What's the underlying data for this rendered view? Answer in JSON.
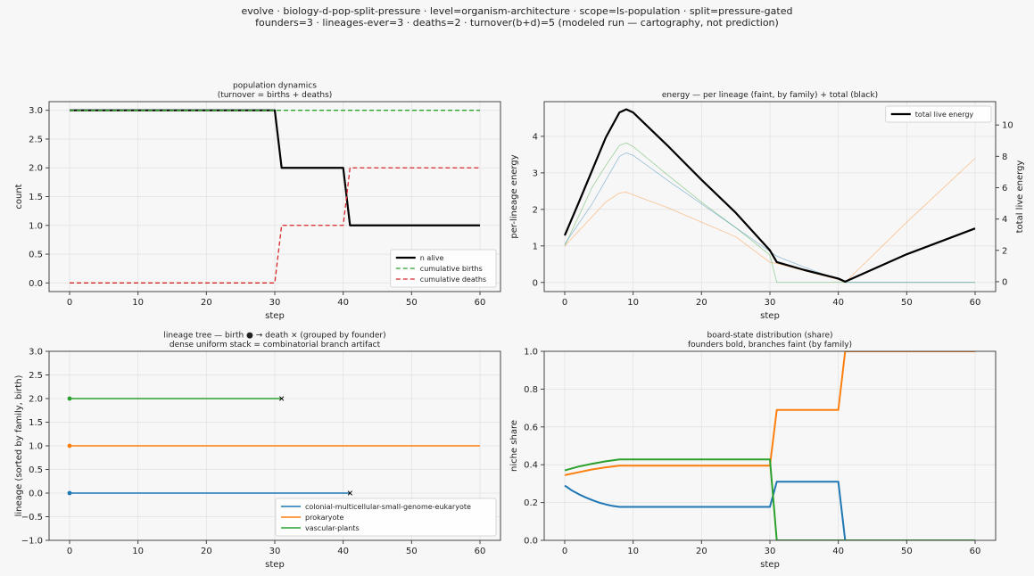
{
  "suptitle": {
    "line1": "evolve · biology-d-pop-split-pressure · level=organism-architecture · scope=ls-population · split=pressure-gated",
    "line2": "founders=3 · lineages-ever=3 · deaths=2 · turnover(b+d)=5   (modeled run — cartography, not prediction)"
  },
  "colors": {
    "blue": "#1f77b4",
    "orange": "#ff7f0e",
    "green": "#2ca02c",
    "red": "#d62728",
    "black": "#000000"
  },
  "chart_data": [
    {
      "id": "pop",
      "type": "line",
      "title": [
        "population dynamics",
        "(turnover = births + deaths)"
      ],
      "xlabel": "step",
      "ylabel": "count",
      "xlim": [
        -3,
        63
      ],
      "ylim": [
        -0.15,
        3.15
      ],
      "xticks": [
        0,
        10,
        20,
        30,
        40,
        50,
        60
      ],
      "yticks": [
        0.0,
        0.5,
        1.0,
        1.5,
        2.0,
        2.5,
        3.0
      ],
      "ytick_labels": [
        "0.0",
        "0.5",
        "1.0",
        "1.5",
        "2.0",
        "2.5",
        "3.0"
      ],
      "grid": true,
      "legend": "lower-right",
      "series": [
        {
          "name": "n alive",
          "color": "#000000",
          "dash": "solid",
          "width": 2.2,
          "points": [
            [
              0,
              3
            ],
            [
              30,
              3
            ],
            [
              31,
              2
            ],
            [
              40,
              2
            ],
            [
              41,
              1
            ],
            [
              60,
              1
            ]
          ]
        },
        {
          "name": "cumulative births",
          "color": "#2ca02c",
          "dash": "dashed",
          "width": 1.3,
          "points": [
            [
              0,
              3
            ],
            [
              60,
              3
            ]
          ]
        },
        {
          "name": "cumulative deaths",
          "color": "#d62728",
          "dash": "dashed",
          "width": 1.3,
          "points": [
            [
              0,
              0
            ],
            [
              30,
              0
            ],
            [
              31,
              1
            ],
            [
              40,
              1
            ],
            [
              41,
              2
            ],
            [
              60,
              2
            ]
          ]
        }
      ]
    },
    {
      "id": "energy",
      "type": "line",
      "title": [
        "energy — per lineage (faint, by family) + total (black)"
      ],
      "xlabel": "step",
      "ylabel": "per-lineage energy",
      "ylabel_right": "total live energy",
      "xlim": [
        -3,
        63
      ],
      "ylim": [
        -0.25,
        4.95
      ],
      "ylim_right": [
        -0.63,
        11.49
      ],
      "xticks": [
        0,
        10,
        20,
        30,
        40,
        50,
        60
      ],
      "yticks": [
        0,
        1,
        2,
        3,
        4
      ],
      "ytick_labels": [
        "0",
        "1",
        "2",
        "3",
        "4"
      ],
      "yticks_right": [
        0,
        2,
        4,
        6,
        8,
        10
      ],
      "ytick_labels_right": [
        "0",
        "2",
        "4",
        "6",
        "8",
        "10"
      ],
      "grid": true,
      "legend": "top-right",
      "series": [
        {
          "name": "",
          "color": "#2ca02c",
          "axis": "left",
          "faint": true,
          "points": [
            [
              0,
              1.0
            ],
            [
              2,
              1.8
            ],
            [
              4,
              2.6
            ],
            [
              6,
              3.2
            ],
            [
              8,
              3.75
            ],
            [
              9,
              3.82
            ],
            [
              10,
              3.72
            ],
            [
              15,
              2.95
            ],
            [
              20,
              2.2
            ],
            [
              25,
              1.5
            ],
            [
              30,
              0.75
            ],
            [
              31,
              0.0
            ],
            [
              60,
              0.0
            ]
          ]
        },
        {
          "name": "",
          "color": "#1f77b4",
          "axis": "left",
          "faint": true,
          "points": [
            [
              0,
              1.05
            ],
            [
              2,
              1.6
            ],
            [
              4,
              2.15
            ],
            [
              6,
              2.8
            ],
            [
              8,
              3.45
            ],
            [
              9,
              3.55
            ],
            [
              10,
              3.48
            ],
            [
              15,
              2.8
            ],
            [
              20,
              2.15
            ],
            [
              25,
              1.5
            ],
            [
              30,
              0.85
            ],
            [
              31,
              0.72
            ],
            [
              35,
              0.42
            ],
            [
              40,
              0.08
            ],
            [
              41,
              0.0
            ],
            [
              60,
              0.0
            ]
          ]
        },
        {
          "name": "",
          "color": "#ff7f0e",
          "axis": "left",
          "faint": true,
          "points": [
            [
              0,
              1.0
            ],
            [
              2,
              1.4
            ],
            [
              4,
              1.8
            ],
            [
              6,
              2.2
            ],
            [
              8,
              2.45
            ],
            [
              9,
              2.47
            ],
            [
              10,
              2.4
            ],
            [
              15,
              2.05
            ],
            [
              20,
              1.65
            ],
            [
              25,
              1.25
            ],
            [
              30,
              0.55
            ],
            [
              31,
              0.52
            ],
            [
              35,
              0.32
            ],
            [
              40,
              0.08
            ],
            [
              41,
              0.0
            ],
            [
              50,
              1.65
            ],
            [
              60,
              3.4
            ]
          ]
        },
        {
          "name": "total live energy",
          "color": "#000000",
          "axis": "right",
          "width": 2.2,
          "points": [
            [
              0,
              2.95
            ],
            [
              2,
              5.0
            ],
            [
              4,
              7.1
            ],
            [
              6,
              9.2
            ],
            [
              8,
              10.8
            ],
            [
              9,
              11.0
            ],
            [
              10,
              10.8
            ],
            [
              15,
              8.7
            ],
            [
              20,
              6.5
            ],
            [
              25,
              4.4
            ],
            [
              30,
              2.0
            ],
            [
              31,
              1.25
            ],
            [
              35,
              0.75
            ],
            [
              40,
              0.2
            ],
            [
              41,
              0.0
            ],
            [
              50,
              1.75
            ],
            [
              60,
              3.4
            ]
          ]
        }
      ]
    },
    {
      "id": "tree",
      "type": "line",
      "title": [
        "lineage tree — birth ● → death ×  (grouped by founder)",
        "dense uniform stack = combinatorial branch artifact"
      ],
      "xlabel": "step",
      "ylabel": "lineage (sorted by family, birth)",
      "xlim": [
        -3,
        63
      ],
      "ylim": [
        -1.0,
        3.0
      ],
      "xticks": [
        0,
        10,
        20,
        30,
        40,
        50,
        60
      ],
      "yticks": [
        -1.0,
        -0.5,
        0.0,
        0.5,
        1.0,
        1.5,
        2.0,
        2.5,
        3.0
      ],
      "ytick_labels": [
        "−1.0",
        "−0.5",
        "0.0",
        "0.5",
        "1.0",
        "1.5",
        "2.0",
        "2.5",
        "3.0"
      ],
      "grid": true,
      "legend": "lower-right",
      "series": [
        {
          "name": "colonial-multicellular-small-genome-eukaryote",
          "color": "#1f77b4",
          "lineage": 0,
          "birth": 0,
          "end": 41,
          "died": true
        },
        {
          "name": "prokaryote",
          "color": "#ff7f0e",
          "lineage": 1,
          "birth": 0,
          "end": 60,
          "died": false
        },
        {
          "name": "vascular-plants",
          "color": "#2ca02c",
          "lineage": 2,
          "birth": 0,
          "end": 31,
          "died": true
        }
      ]
    },
    {
      "id": "share",
      "type": "line",
      "title": [
        "board-state distribution (share)",
        "founders bold, branches faint (by family)"
      ],
      "xlabel": "step",
      "ylabel": "niche share",
      "xlim": [
        -3,
        63
      ],
      "ylim": [
        0.0,
        1.0
      ],
      "xticks": [
        0,
        10,
        20,
        30,
        40,
        50,
        60
      ],
      "yticks": [
        0.0,
        0.2,
        0.4,
        0.6,
        0.8,
        1.0
      ],
      "ytick_labels": [
        "0.0",
        "0.2",
        "0.4",
        "0.6",
        "0.8",
        "1.0"
      ],
      "grid": true,
      "series": [
        {
          "name": "",
          "color": "#1f77b4",
          "width": 2,
          "points": [
            [
              0,
              0.29
            ],
            [
              1,
              0.265
            ],
            [
              2,
              0.245
            ],
            [
              3,
              0.228
            ],
            [
              4,
              0.213
            ],
            [
              5,
              0.2
            ],
            [
              6,
              0.19
            ],
            [
              7,
              0.182
            ],
            [
              8,
              0.177
            ],
            [
              30,
              0.177
            ],
            [
              31,
              0.31
            ],
            [
              40,
              0.31
            ],
            [
              41,
              0.0
            ],
            [
              60,
              0.0
            ]
          ]
        },
        {
          "name": "",
          "color": "#ff7f0e",
          "width": 2,
          "points": [
            [
              0,
              0.345
            ],
            [
              2,
              0.36
            ],
            [
              4,
              0.375
            ],
            [
              6,
              0.386
            ],
            [
              8,
              0.395
            ],
            [
              30,
              0.395
            ],
            [
              31,
              0.69
            ],
            [
              40,
              0.69
            ],
            [
              41,
              1.0
            ],
            [
              60,
              1.0
            ]
          ]
        },
        {
          "name": "",
          "color": "#2ca02c",
          "width": 2,
          "points": [
            [
              0,
              0.37
            ],
            [
              2,
              0.39
            ],
            [
              4,
              0.405
            ],
            [
              6,
              0.418
            ],
            [
              8,
              0.428
            ],
            [
              30,
              0.428
            ],
            [
              31,
              0.0
            ],
            [
              60,
              0.0
            ]
          ]
        }
      ]
    }
  ]
}
